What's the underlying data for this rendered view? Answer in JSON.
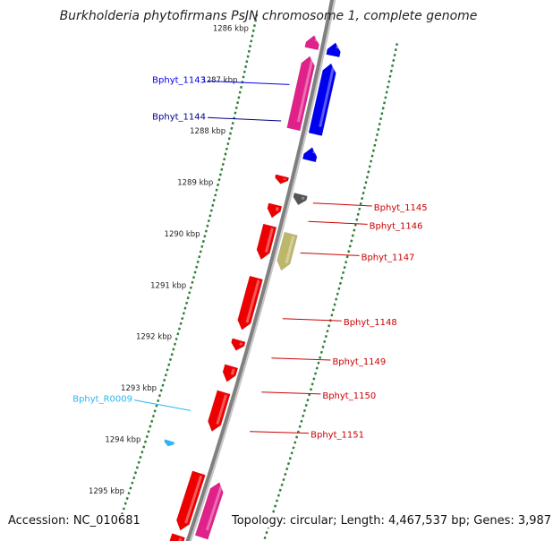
{
  "title": "Burkholderia phytofirmans PsJN chromosome 1, complete genome",
  "footer": {
    "accession": "Accession: NC_010681",
    "stats": "Topology: circular; Length: 4,467,537 bp; Genes: 3,987"
  },
  "colors": {
    "backbone": "#808080",
    "tick": "#2e7d32",
    "gene_forward": "#0000ee",
    "gene_forward_alt": "#e0218a",
    "gene_reverse": "#ee0000",
    "rna": "#29b6f6",
    "other_gray": "#555555",
    "other_khaki": "#bdb76b",
    "label_forward": "#00008b",
    "label_forward_alt": "#0000ee",
    "label_reverse": "#cc0000",
    "label_rna": "#29b6f6"
  },
  "scale": {
    "unit": "kbp",
    "ticks": [
      1286,
      1287,
      1288,
      1289,
      1290,
      1291,
      1292,
      1293,
      1294,
      1295
    ]
  },
  "features": [
    {
      "start": 1285.9,
      "end": 1286.15,
      "strand": "+",
      "track": 1,
      "color": "gene_forward_alt"
    },
    {
      "start": 1285.95,
      "end": 1286.2,
      "strand": "+",
      "track": 2,
      "color": "gene_forward"
    },
    {
      "start": 1286.3,
      "end": 1287.7,
      "strand": "+",
      "track": 1,
      "color": "gene_forward_alt"
    },
    {
      "start": 1286.35,
      "end": 1287.7,
      "strand": "+",
      "track": 2,
      "color": "gene_forward"
    },
    {
      "start": 1287.95,
      "end": 1288.2,
      "strand": "+",
      "track": 2,
      "color": "gene_forward"
    },
    {
      "start": 1288.6,
      "end": 1288.75,
      "strand": "-",
      "track": 1,
      "color": "gene_reverse"
    },
    {
      "start": 1288.85,
      "end": 1289.05,
      "strand": "-",
      "track": 2,
      "color": "other_gray"
    },
    {
      "start": 1289.15,
      "end": 1289.4,
      "strand": "-",
      "track": 1,
      "color": "gene_reverse"
    },
    {
      "start": 1289.55,
      "end": 1290.2,
      "strand": "-",
      "track": 1,
      "color": "gene_reverse"
    },
    {
      "start": 1289.6,
      "end": 1290.3,
      "strand": "-",
      "track": 2,
      "color": "other_khaki"
    },
    {
      "start": 1290.55,
      "end": 1291.55,
      "strand": "-",
      "track": 1,
      "color": "gene_reverse"
    },
    {
      "start": 1291.75,
      "end": 1291.95,
      "strand": "-",
      "track": 1,
      "color": "gene_reverse"
    },
    {
      "start": 1292.25,
      "end": 1292.55,
      "strand": "-",
      "track": 1,
      "color": "gene_reverse"
    },
    {
      "start": 1292.75,
      "end": 1293.5,
      "strand": "-",
      "track": 1,
      "color": "gene_reverse"
    },
    {
      "start": 1293.9,
      "end": 1294.0,
      "strand": "-",
      "track": 0,
      "color": "rna"
    },
    {
      "start": 1294.3,
      "end": 1295.4,
      "strand": "-",
      "track": 1,
      "color": "gene_reverse"
    },
    {
      "start": 1294.35,
      "end": 1295.4,
      "strand": "+",
      "track": 2,
      "color": "gene_forward_alt"
    },
    {
      "start": 1295.5,
      "end": 1295.8,
      "strand": "-",
      "track": 1,
      "color": "gene_reverse"
    }
  ],
  "labels": [
    {
      "text": "Bphyt_1143",
      "kbp": 1286.9,
      "side": "left",
      "color": "label_forward_alt"
    },
    {
      "text": "Bphyt_1144",
      "kbp": 1287.6,
      "side": "left",
      "color": "label_forward"
    },
    {
      "text": "Bphyt_1145",
      "kbp": 1288.95,
      "side": "right",
      "color": "label_reverse"
    },
    {
      "text": "Bphyt_1146",
      "kbp": 1289.3,
      "side": "right",
      "color": "label_reverse"
    },
    {
      "text": "Bphyt_1147",
      "kbp": 1289.9,
      "side": "right",
      "color": "label_reverse"
    },
    {
      "text": "Bphyt_1148",
      "kbp": 1291.15,
      "side": "right",
      "color": "label_reverse"
    },
    {
      "text": "Bphyt_1149",
      "kbp": 1291.9,
      "side": "right",
      "color": "label_reverse"
    },
    {
      "text": "Bphyt_1150",
      "kbp": 1292.55,
      "side": "right",
      "color": "label_reverse"
    },
    {
      "text": "Bphyt_R0009",
      "kbp": 1293.25,
      "side": "left",
      "color": "label_rna"
    },
    {
      "text": "Bphyt_1151",
      "kbp": 1293.3,
      "side": "right",
      "color": "label_reverse"
    }
  ]
}
